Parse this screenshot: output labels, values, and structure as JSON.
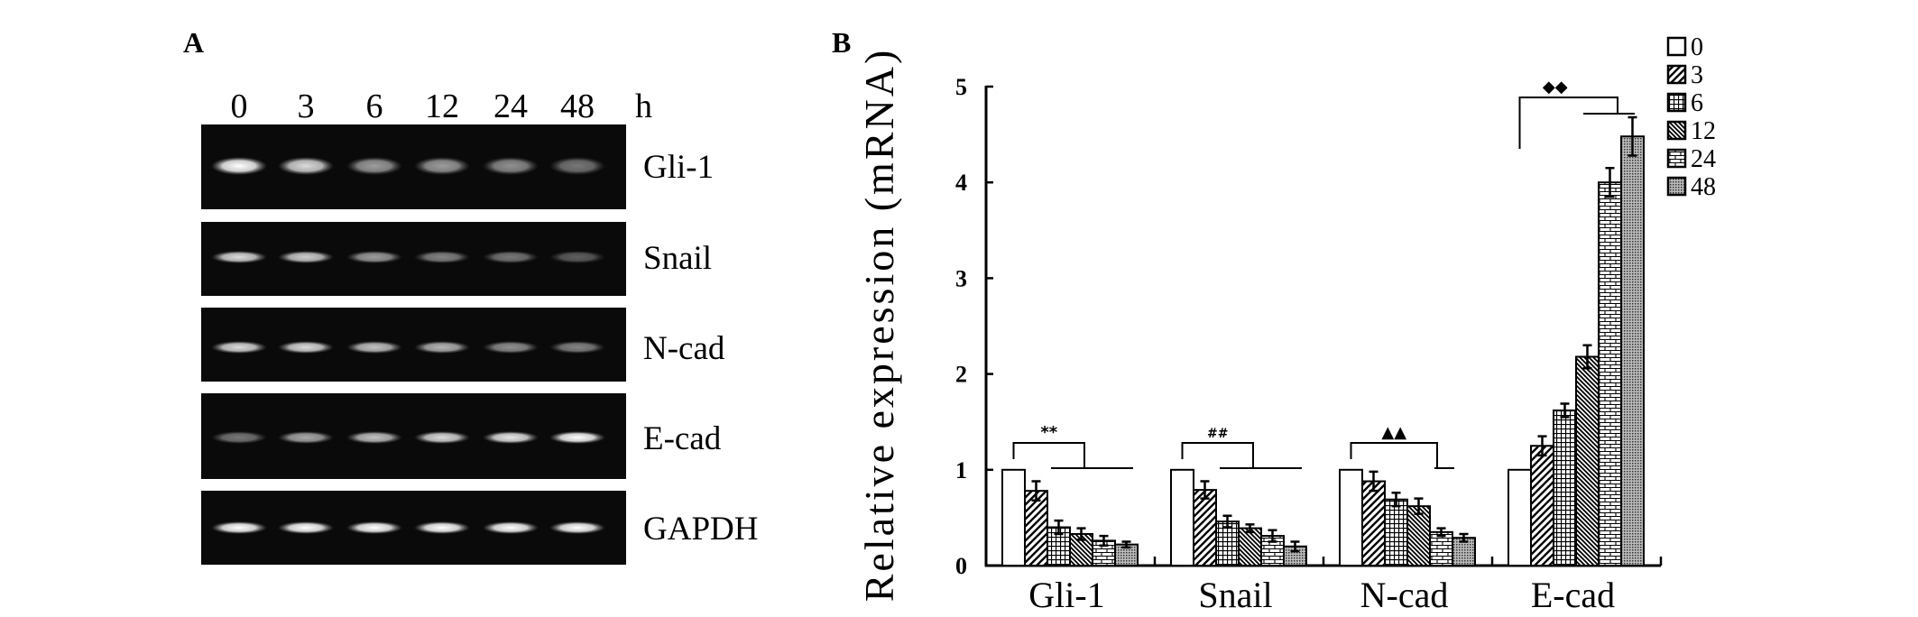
{
  "panel_a": {
    "label": "A",
    "time_unit": "h",
    "lanes": [
      "0",
      "3",
      "6",
      "12",
      "24",
      "48"
    ],
    "rows": [
      {
        "label": "Gli-1",
        "band_intensity": [
          1.0,
          0.85,
          0.6,
          0.6,
          0.55,
          0.45
        ]
      },
      {
        "label": "Snail",
        "band_intensity": [
          0.85,
          0.8,
          0.6,
          0.5,
          0.45,
          0.35
        ]
      },
      {
        "label": "N-cad",
        "band_intensity": [
          0.85,
          0.85,
          0.75,
          0.7,
          0.55,
          0.5
        ]
      },
      {
        "label": "E-cad",
        "band_intensity": [
          0.45,
          0.65,
          0.75,
          0.85,
          0.9,
          1.0
        ]
      },
      {
        "label": "GAPDH",
        "band_intensity": [
          1.0,
          1.0,
          1.0,
          1.0,
          1.0,
          1.0
        ]
      }
    ]
  },
  "chart_data": {
    "type": "bar",
    "panel_label": "B",
    "title": "",
    "xlabel": "",
    "ylabel": "Relative expression (mRNA)",
    "ylim": [
      0,
      5
    ],
    "yticks": [
      "0",
      "1",
      "2",
      "3",
      "4",
      "5"
    ],
    "categories": [
      "Gli-1",
      "Snail",
      "N-cad",
      "E-cad"
    ],
    "legend_position": "top-right",
    "grid": false,
    "series": [
      {
        "name": "0",
        "pattern": "white",
        "values": [
          1.0,
          1.0,
          1.0,
          1.0
        ],
        "errors": [
          0,
          0,
          0,
          0
        ]
      },
      {
        "name": "3",
        "pattern": "diagonal",
        "values": [
          0.78,
          0.79,
          0.88,
          1.25
        ],
        "errors": [
          0.1,
          0.09,
          0.1,
          0.1
        ]
      },
      {
        "name": "6",
        "pattern": "grid",
        "values": [
          0.4,
          0.46,
          0.69,
          1.62
        ],
        "errors": [
          0.07,
          0.06,
          0.07,
          0.07
        ]
      },
      {
        "name": "12",
        "pattern": "backslash",
        "values": [
          0.33,
          0.39,
          0.62,
          2.18
        ],
        "errors": [
          0.06,
          0.04,
          0.08,
          0.12
        ]
      },
      {
        "name": "24",
        "pattern": "brick",
        "values": [
          0.26,
          0.31,
          0.35,
          4.0
        ],
        "errors": [
          0.05,
          0.06,
          0.04,
          0.15
        ]
      },
      {
        "name": "48",
        "pattern": "dots",
        "values": [
          0.22,
          0.2,
          0.29,
          4.48
        ],
        "errors": [
          0.03,
          0.05,
          0.04,
          0.2
        ]
      }
    ],
    "annotations": [
      {
        "category": "Gli-1",
        "marker": "**"
      },
      {
        "category": "Snail",
        "marker": "##"
      },
      {
        "category": "N-cad",
        "marker": "▲▲"
      },
      {
        "category": "E-cad",
        "marker": "◆◆"
      }
    ]
  }
}
